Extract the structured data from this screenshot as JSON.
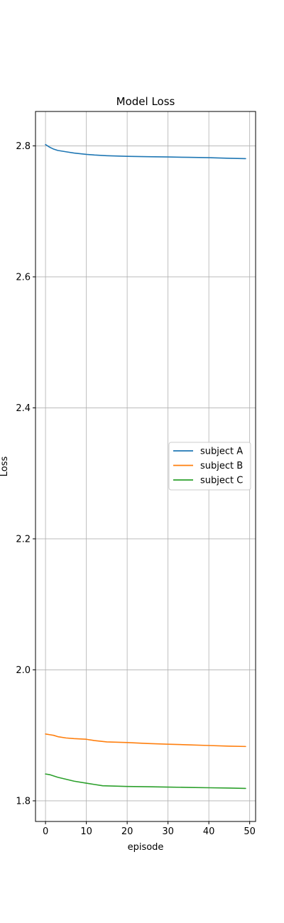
{
  "chart_data": {
    "type": "line",
    "title": "Model Loss",
    "xlabel": "episode",
    "ylabel": "Loss",
    "xlim": [
      -2.45,
      51.45
    ],
    "ylim": [
      1.7685,
      2.8525
    ],
    "xticks": [
      0,
      10,
      20,
      30,
      40,
      50
    ],
    "yticks": [
      1.8,
      2.0,
      2.2,
      2.4,
      2.6,
      2.8
    ],
    "grid": true,
    "legend_position": "center-right",
    "series": [
      {
        "name": "subject A",
        "color": "#1f77b4",
        "points": [
          [
            0,
            2.802
          ],
          [
            1,
            2.798
          ],
          [
            2,
            2.795
          ],
          [
            3,
            2.793
          ],
          [
            5,
            2.791
          ],
          [
            7,
            2.789
          ],
          [
            10,
            2.787
          ],
          [
            12,
            2.786
          ],
          [
            15,
            2.785
          ],
          [
            20,
            2.784
          ],
          [
            25,
            2.7835
          ],
          [
            30,
            2.783
          ],
          [
            35,
            2.7825
          ],
          [
            40,
            2.782
          ],
          [
            45,
            2.781
          ],
          [
            49,
            2.7805
          ]
        ]
      },
      {
        "name": "subject B",
        "color": "#ff7f0e",
        "points": [
          [
            0,
            1.902
          ],
          [
            1,
            1.901
          ],
          [
            2,
            1.9
          ],
          [
            3,
            1.898
          ],
          [
            5,
            1.896
          ],
          [
            7,
            1.895
          ],
          [
            10,
            1.894
          ],
          [
            12,
            1.892
          ],
          [
            15,
            1.89
          ],
          [
            20,
            1.889
          ],
          [
            25,
            1.8875
          ],
          [
            30,
            1.8865
          ],
          [
            35,
            1.8855
          ],
          [
            40,
            1.8845
          ],
          [
            45,
            1.8835
          ],
          [
            49,
            1.883
          ]
        ]
      },
      {
        "name": "subject C",
        "color": "#2ca02c",
        "points": [
          [
            0,
            1.841
          ],
          [
            1,
            1.84
          ],
          [
            2,
            1.838
          ],
          [
            3,
            1.836
          ],
          [
            5,
            1.833
          ],
          [
            7,
            1.83
          ],
          [
            10,
            1.827
          ],
          [
            12,
            1.825
          ],
          [
            14,
            1.823
          ],
          [
            20,
            1.822
          ],
          [
            25,
            1.8215
          ],
          [
            30,
            1.821
          ],
          [
            35,
            1.8205
          ],
          [
            40,
            1.82
          ],
          [
            45,
            1.8195
          ],
          [
            49,
            1.819
          ]
        ]
      }
    ]
  }
}
